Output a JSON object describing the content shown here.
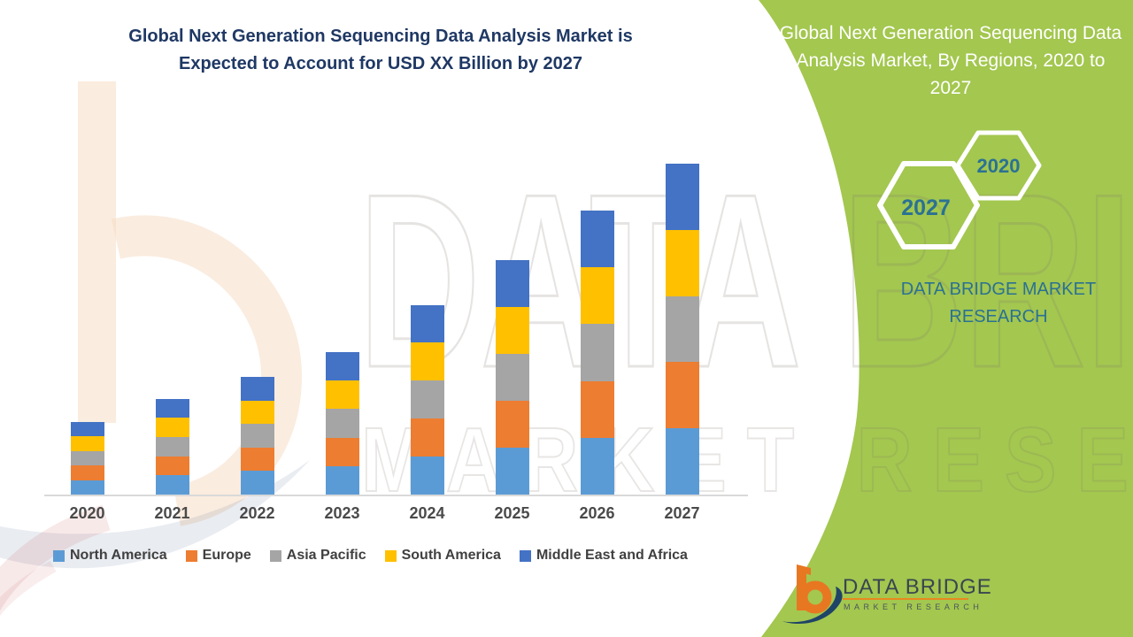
{
  "page": {
    "background": "#FFFFFF"
  },
  "header": {
    "title_line1": "Global Next Generation Sequencing Data Analysis Market is",
    "title_line2": "Expected to Account for USD XX Billion by 2027",
    "title_color": "#1F3864"
  },
  "chart_data": {
    "type": "bar",
    "stacked": true,
    "title": "Global Next Generation Sequencing Data Analysis Market is Expected to Account for USD XX Billion by 2027",
    "categories": [
      "2020",
      "2021",
      "2022",
      "2023",
      "2024",
      "2025",
      "2026",
      "2027"
    ],
    "series": [
      {
        "name": "North America",
        "color": "#5B9BD5",
        "values": [
          16.4,
          21.7,
          26.6,
          32.2,
          42.9,
          53.1,
          64.2,
          74.8
        ]
      },
      {
        "name": "Europe",
        "color": "#ED7D31",
        "values": [
          16.4,
          21.7,
          26.6,
          32.2,
          42.9,
          53.1,
          64.2,
          74.8
        ]
      },
      {
        "name": "Asia Pacific",
        "color": "#A5A5A5",
        "values": [
          16.4,
          21.7,
          26.6,
          32.2,
          42.9,
          53.1,
          64.2,
          74.8
        ]
      },
      {
        "name": "South America",
        "color": "#FFC000",
        "values": [
          16.4,
          21.7,
          26.6,
          32.2,
          42.9,
          53.1,
          64.2,
          74.8
        ]
      },
      {
        "name": "Middle East and Africa",
        "color": "#4472C4",
        "values": [
          16.4,
          21.7,
          26.6,
          32.2,
          42.9,
          53.1,
          64.2,
          74.8
        ]
      }
    ],
    "xlabel": "",
    "ylabel": "",
    "value_axis_visible": false,
    "gridlines": false,
    "legend_position": "bottom",
    "units": "USD Billion (amount shown as XX)"
  },
  "panel": {
    "background": "#A3C74F",
    "title": "Global Next Generation Sequencing Data Analysis Market, By Regions, 2020 to 2027",
    "hex_year_small": "2020",
    "hex_year_large": "2027",
    "brand_text": "DATA BRIDGE MARKET RESEARCH",
    "accent_text_color": "#2B7193"
  },
  "logo": {
    "brand": "DATA BRIDGE",
    "subtitle": "MARKET RESEARCH"
  },
  "watermark": {
    "line1": "DATA BRIDGE",
    "line2": "MARKET RESEARCH"
  }
}
